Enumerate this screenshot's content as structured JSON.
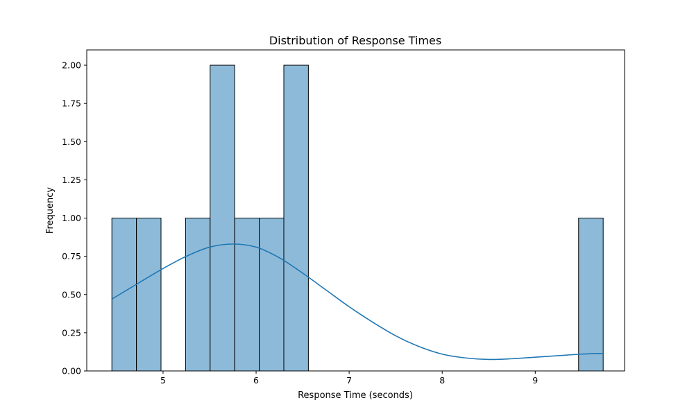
{
  "chart_data": {
    "type": "bar",
    "title": "Distribution of Response Times",
    "xlabel": "Response Time (seconds)",
    "ylabel": "Frequency",
    "xlim": [
      4.18,
      9.96
    ],
    "ylim": [
      0,
      2.1
    ],
    "xticks": [
      5,
      6,
      7,
      8,
      9
    ],
    "xtick_labels": [
      "5",
      "6",
      "7",
      "8",
      "9"
    ],
    "yticks": [
      0,
      0.25,
      0.5,
      0.75,
      1.0,
      1.25,
      1.5,
      1.75,
      2.0
    ],
    "ytick_labels": [
      "0.00",
      "0.25",
      "0.50",
      "0.75",
      "1.00",
      "1.25",
      "1.50",
      "1.75",
      "2.00"
    ],
    "grid": false,
    "bin_edges": [
      4.45,
      4.714,
      4.978,
      5.242,
      5.506,
      5.77,
      6.034,
      6.298,
      6.562,
      6.826,
      7.09,
      7.354,
      7.618,
      7.882,
      8.146,
      8.41,
      8.674,
      8.938,
      9.202,
      9.466,
      9.73
    ],
    "counts": [
      1,
      1,
      0,
      1,
      2,
      1,
      1,
      2,
      0,
      0,
      0,
      0,
      0,
      0,
      0,
      0,
      0,
      0,
      0,
      1
    ],
    "kde": {
      "x": [
        4.45,
        4.75,
        5.0,
        5.25,
        5.5,
        5.75,
        6.0,
        6.25,
        6.5,
        6.75,
        7.0,
        7.25,
        7.5,
        7.75,
        8.0,
        8.25,
        8.5,
        8.75,
        9.0,
        9.25,
        9.5,
        9.73
      ],
      "y": [
        0.47,
        0.58,
        0.67,
        0.75,
        0.81,
        0.83,
        0.81,
        0.74,
        0.64,
        0.53,
        0.42,
        0.32,
        0.23,
        0.16,
        0.11,
        0.085,
        0.075,
        0.08,
        0.09,
        0.1,
        0.11,
        0.115
      ]
    },
    "colors": {
      "bar_fill": "#8dbad9",
      "bar_edge": "#000000",
      "kde_line": "#1f77b4"
    }
  }
}
